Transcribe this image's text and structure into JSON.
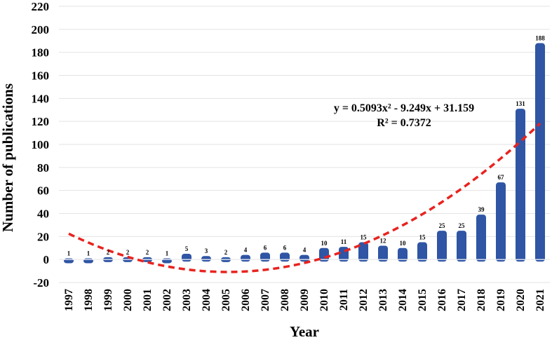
{
  "chart_data": {
    "type": "bar",
    "title": "",
    "xlabel": "Year",
    "ylabel": "Number of publications",
    "ylim": [
      -20,
      220
    ],
    "yticks": [
      -20,
      0,
      20,
      40,
      60,
      80,
      100,
      120,
      140,
      160,
      180,
      200,
      220
    ],
    "ytick_labels": [
      "-20",
      "0",
      "20",
      "40",
      "60",
      "80",
      "100",
      "120",
      "140",
      "160",
      "180",
      "200",
      "220"
    ],
    "grid": true,
    "categories": [
      "1997",
      "1998",
      "1999",
      "2000",
      "2001",
      "2002",
      "2003",
      "2004",
      "2005",
      "2006",
      "2007",
      "2008",
      "2009",
      "2010",
      "2011",
      "2012",
      "2013",
      "2014",
      "2015",
      "2016",
      "2017",
      "2018",
      "2019",
      "2020",
      "2021"
    ],
    "values": [
      1,
      1,
      2,
      2,
      2,
      1,
      5,
      3,
      2,
      4,
      6,
      6,
      4,
      10,
      11,
      15,
      12,
      10,
      15,
      25,
      25,
      39,
      67,
      131,
      188
    ],
    "data_labels": [
      "1",
      "1",
      "2",
      "2",
      "2",
      "1",
      "5",
      "3",
      "2",
      "4",
      "6",
      "6",
      "4",
      "10",
      "11",
      "15",
      "12",
      "10",
      "15",
      "25",
      "25",
      "39",
      "67",
      "131",
      "188"
    ],
    "bar_color": "#2f55a4",
    "trendline": {
      "type": "polynomial",
      "order": 2,
      "coefficients": [
        0.5093,
        -9.249,
        31.159
      ],
      "color": "#e8231f",
      "equation_line1": "y = 0.5093x² - 9.249x + 31.159",
      "equation_line2": "R² = 0.7372"
    }
  }
}
